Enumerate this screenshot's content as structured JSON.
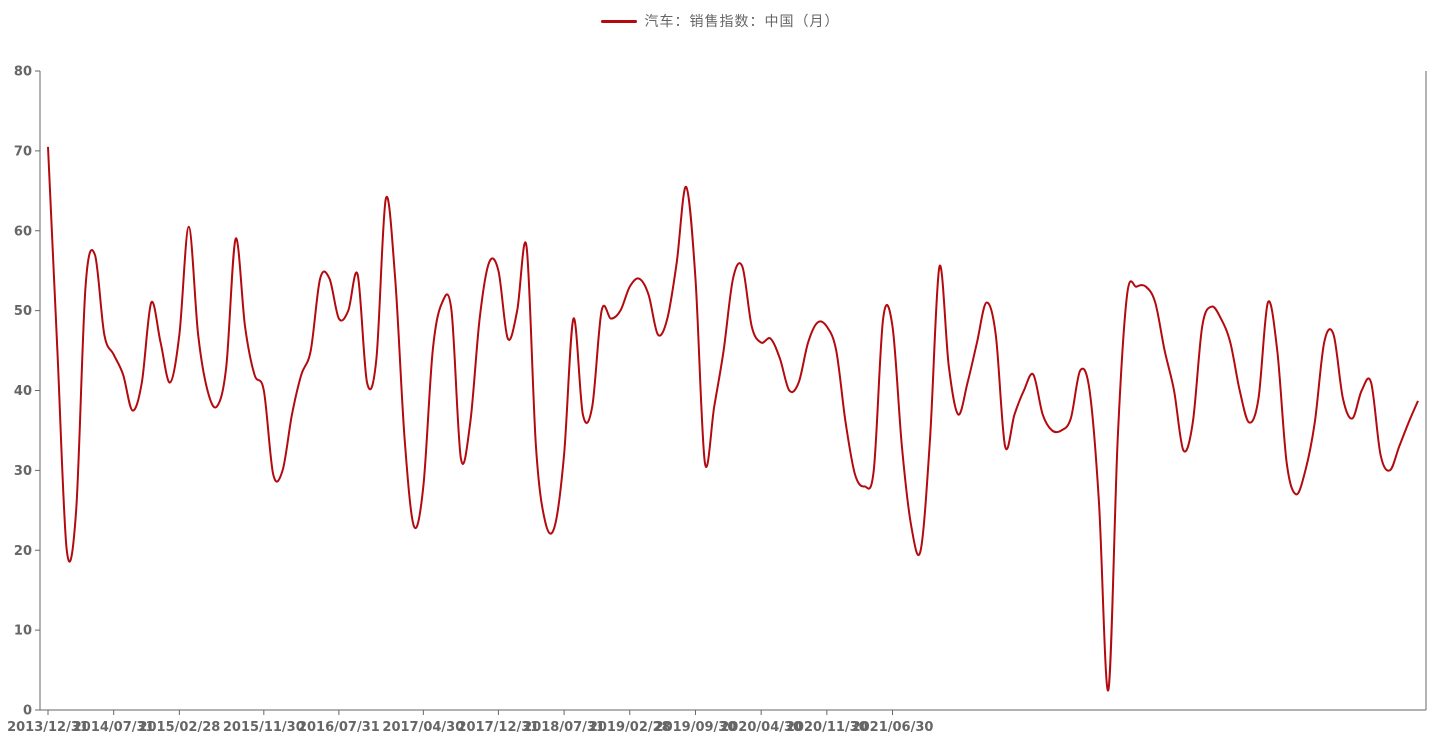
{
  "chart_data": {
    "type": "line",
    "title": "",
    "xlabel": "",
    "ylabel": "",
    "ylim": [
      0,
      80
    ],
    "y_ticks": [
      "0",
      "10",
      "20",
      "30",
      "40",
      "50",
      "60",
      "70",
      "80"
    ],
    "x_tick_labels": [
      "2013/12/31",
      "2014/07/31",
      "2015/02/28",
      "2015/11/30",
      "2016/07/31",
      "2017/04/30",
      "2017/12/31",
      "2018/07/31",
      "2019/02/28",
      "2019/09/30",
      "2020/04/30",
      "2020/11/30",
      "2021/06/30"
    ],
    "x_tick_index": [
      0,
      7,
      14,
      23,
      31,
      40,
      48,
      55,
      62,
      69,
      76,
      83,
      90
    ],
    "legend_position": "top-center",
    "grid": false,
    "series": [
      {
        "name": "汽车：销售指数：中国（月）",
        "color": "#b30a0f",
        "start": "2013/12/31",
        "frequency": "monthly",
        "values": [
          70.5,
          45,
          20,
          25,
          53,
          57,
          47,
          44.5,
          42,
          37.5,
          41,
          51,
          46,
          41,
          47,
          60.5,
          47,
          40,
          38,
          43,
          59,
          48,
          42,
          40,
          29.5,
          30,
          37,
          42,
          45,
          54,
          54,
          49,
          50,
          54.5,
          41,
          44,
          64,
          54,
          34,
          23,
          28,
          45,
          51,
          50,
          31.5,
          36,
          49,
          56,
          55,
          46.5,
          50,
          58,
          33,
          23.5,
          23,
          32,
          49,
          37,
          38,
          50,
          49,
          50,
          53,
          54,
          52,
          47,
          49,
          56,
          65.5,
          54,
          31,
          38,
          45,
          54,
          55.5,
          48,
          46,
          46.5,
          44,
          40,
          41,
          46,
          48.5,
          48,
          45,
          36,
          29.5,
          28,
          30,
          49,
          48,
          33,
          23,
          20,
          34,
          55.5,
          43,
          37,
          41,
          46,
          51,
          47,
          33,
          37,
          40,
          42,
          37,
          35,
          35,
          36.5,
          42.5,
          40,
          26,
          2.5,
          34,
          52,
          53,
          53,
          51,
          45,
          40,
          32.5,
          36,
          48,
          50.5,
          49,
          46,
          40,
          36,
          39,
          51,
          45,
          31,
          27,
          30,
          36,
          46,
          47,
          39,
          36.5,
          40,
          41,
          32,
          30,
          33,
          36,
          38.7
        ]
      }
    ]
  }
}
